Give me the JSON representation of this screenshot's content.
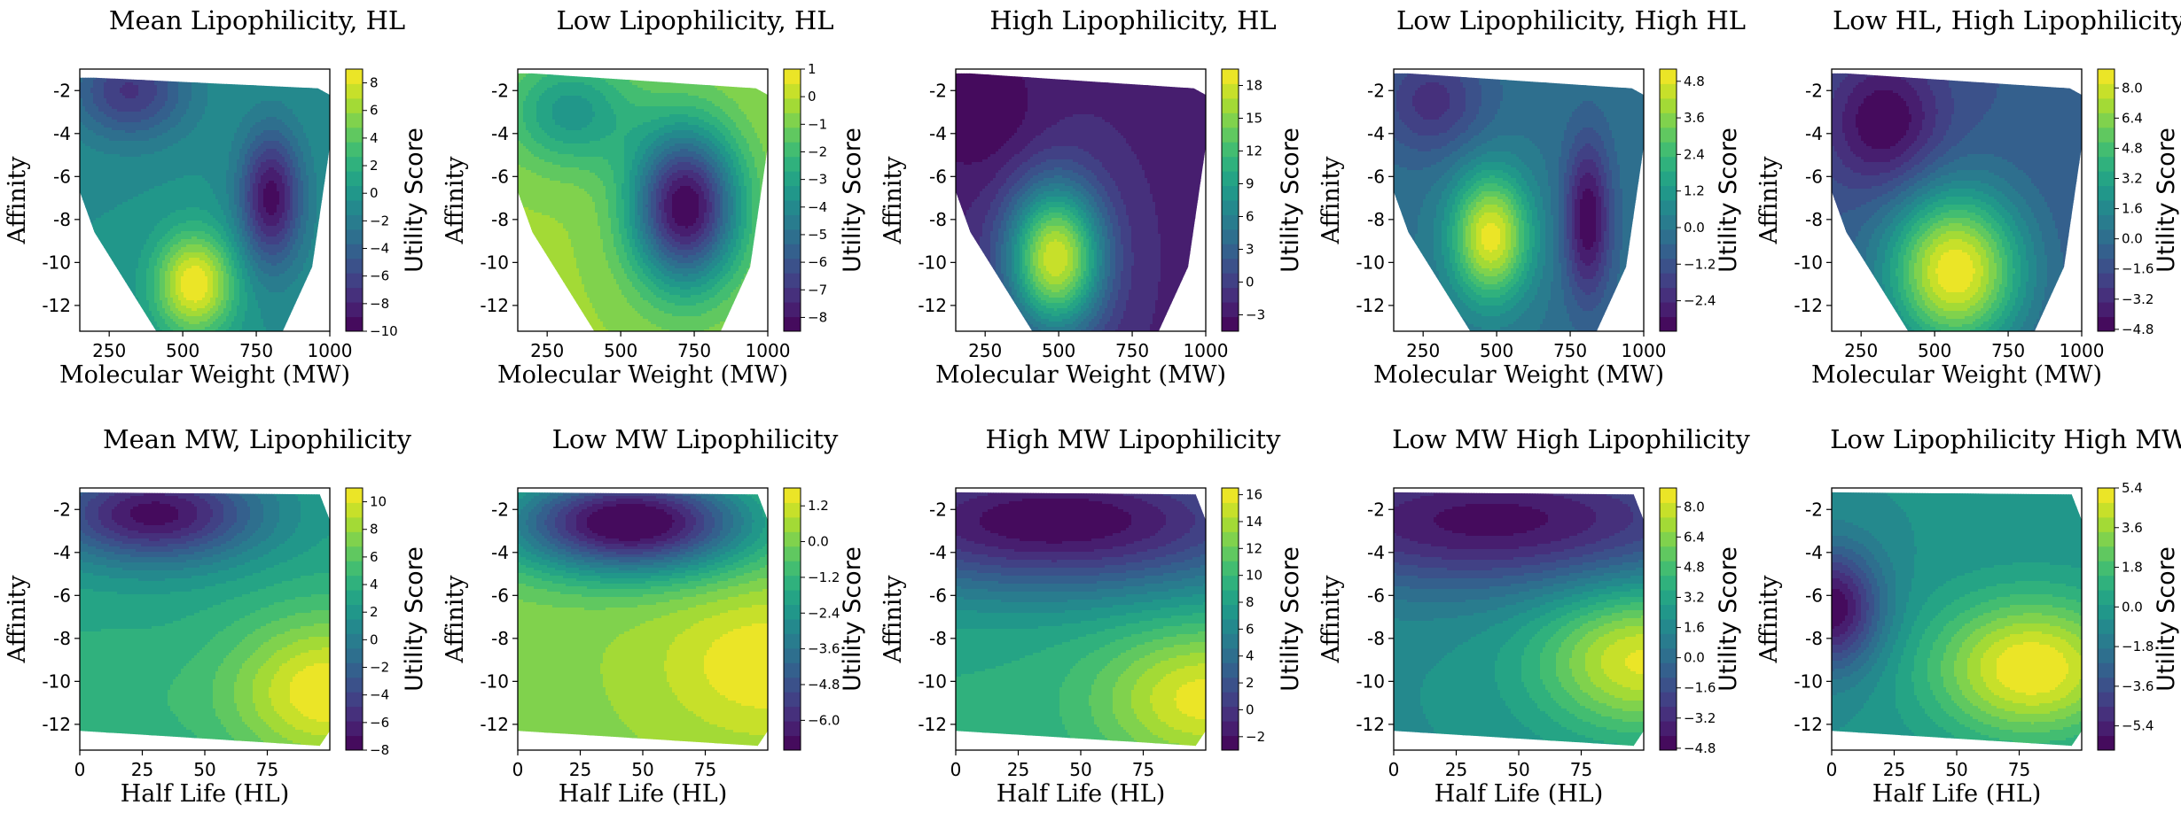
{
  "colors": {
    "viridis": [
      "#440154",
      "#482878",
      "#3e4989",
      "#31688e",
      "#26828e",
      "#1f9e89",
      "#35b779",
      "#6ece58",
      "#b5de2b",
      "#fde725"
    ]
  },
  "chart_data": [
    {
      "type": "heatmap",
      "title": "Mean Lipophilicity, HL",
      "xlabel": "Molecular Weight (MW)",
      "ylabel": "Affinity",
      "colorbar_label": "Utility Score",
      "xlim": [
        150,
        1000
      ],
      "ylim": [
        -13.2,
        -1.0
      ],
      "xticks": [
        "250",
        "500",
        "750",
        "1000"
      ],
      "yticks": [
        "-2",
        "-4",
        "-6",
        "-8",
        "-10",
        "-12"
      ],
      "colorbar_range": [
        -10,
        9
      ],
      "colorbar_ticks": [
        "8",
        "6",
        "4",
        "2",
        "0",
        "−2",
        "−4",
        "−6",
        "−8",
        "−10"
      ],
      "background_level": -0.5,
      "hotspots": [
        {
          "x": 540,
          "y": -11.0,
          "sx": 95,
          "sy": 1.7,
          "amp": 9.5
        },
        {
          "x": 800,
          "y": -7.0,
          "sx": 75,
          "sy": 2.2,
          "amp": -9.0
        },
        {
          "x": 320,
          "y": -2.0,
          "sx": 140,
          "sy": 1.6,
          "amp": -6.5
        }
      ],
      "domain_polygon": [
        [
          200,
          -1.4
        ],
        [
          960,
          -1.9
        ],
        [
          1000,
          -2.2
        ],
        [
          1000,
          -4.6
        ],
        [
          940,
          -10.2
        ],
        [
          840,
          -13.2
        ],
        [
          410,
          -13.2
        ],
        [
          200,
          -8.6
        ],
        [
          150,
          -6.7
        ],
        [
          150,
          -1.4
        ]
      ]
    },
    {
      "type": "heatmap",
      "title": "Low Lipophilicity, HL",
      "xlabel": "Molecular Weight (MW)",
      "ylabel": "Affinity",
      "colorbar_label": "Utility Score",
      "xlim": [
        150,
        1000
      ],
      "ylim": [
        -13.2,
        -1.0
      ],
      "xticks": [
        "250",
        "500",
        "750",
        "1000"
      ],
      "yticks": [
        "-2",
        "-4",
        "-6",
        "-8",
        "-10",
        "-12"
      ],
      "colorbar_range": [
        -8.5,
        1
      ],
      "colorbar_ticks": [
        "1",
        "0",
        "−1",
        "−2",
        "−3",
        "−4",
        "−5",
        "−6",
        "−7",
        "−8"
      ],
      "background_level": -0.5,
      "hotspots": [
        {
          "x": 720,
          "y": -7.4,
          "sx": 130,
          "sy": 2.6,
          "amp": -8.0
        },
        {
          "x": 330,
          "y": -3.0,
          "sx": 150,
          "sy": 1.8,
          "amp": -3.0
        }
      ],
      "domain_polygon": [
        [
          200,
          -1.2
        ],
        [
          960,
          -1.9
        ],
        [
          1000,
          -2.2
        ],
        [
          1000,
          -4.6
        ],
        [
          940,
          -10.2
        ],
        [
          840,
          -13.2
        ],
        [
          410,
          -13.2
        ],
        [
          200,
          -8.6
        ],
        [
          150,
          -6.7
        ],
        [
          150,
          -1.2
        ]
      ]
    },
    {
      "type": "heatmap",
      "title": "High Lipophilicity, HL",
      "xlabel": "Molecular Weight (MW)",
      "ylabel": "Affinity",
      "colorbar_label": "Utility Score",
      "xlim": [
        150,
        1000
      ],
      "ylim": [
        -13.2,
        -1.0
      ],
      "xticks": [
        "250",
        "500",
        "750",
        "1000"
      ],
      "yticks": [
        "-2",
        "-4",
        "-6",
        "-8",
        "-10",
        "-12"
      ],
      "colorbar_range": [
        -4.5,
        19.5
      ],
      "colorbar_ticks": [
        "18",
        "15",
        "12",
        "9",
        "6",
        "3",
        "0",
        "−3"
      ],
      "background_level": -2.0,
      "hotspots": [
        {
          "x": 490,
          "y": -9.8,
          "sx": 115,
          "sy": 2.4,
          "amp": 20.0
        },
        {
          "x": 240,
          "y": -3.0,
          "sx": 140,
          "sy": 2.2,
          "amp": -2.5
        }
      ],
      "domain_polygon": [
        [
          200,
          -1.2
        ],
        [
          960,
          -1.9
        ],
        [
          1000,
          -2.2
        ],
        [
          1000,
          -4.6
        ],
        [
          940,
          -10.2
        ],
        [
          840,
          -13.2
        ],
        [
          410,
          -13.2
        ],
        [
          200,
          -8.6
        ],
        [
          150,
          -6.7
        ],
        [
          150,
          -1.2
        ]
      ]
    },
    {
      "type": "heatmap",
      "title": "Low Lipophilicity, High HL",
      "xlabel": "Molecular Weight (MW)",
      "ylabel": "Affinity",
      "colorbar_label": "Utility Score",
      "xlim": [
        150,
        1000
      ],
      "ylim": [
        -13.2,
        -1.0
      ],
      "xticks": [
        "250",
        "500",
        "750",
        "1000"
      ],
      "yticks": [
        "-2",
        "-4",
        "-6",
        "-8",
        "-10",
        "-12"
      ],
      "colorbar_range": [
        -3.4,
        5.2
      ],
      "colorbar_ticks": [
        "4.8",
        "3.6",
        "2.4",
        "1.2",
        "0.0",
        "−1.2",
        "−2.4"
      ],
      "background_level": -0.2,
      "hotspots": [
        {
          "x": 480,
          "y": -8.8,
          "sx": 95,
          "sy": 2.1,
          "amp": 5.2
        },
        {
          "x": 810,
          "y": -8.0,
          "sx": 55,
          "sy": 2.6,
          "amp": -3.2
        },
        {
          "x": 280,
          "y": -2.5,
          "sx": 130,
          "sy": 1.8,
          "amp": -2.0
        }
      ],
      "domain_polygon": [
        [
          200,
          -1.2
        ],
        [
          960,
          -1.9
        ],
        [
          1000,
          -2.2
        ],
        [
          1000,
          -4.6
        ],
        [
          940,
          -10.2
        ],
        [
          840,
          -13.2
        ],
        [
          410,
          -13.2
        ],
        [
          200,
          -8.6
        ],
        [
          150,
          -6.7
        ],
        [
          150,
          -1.2
        ]
      ]
    },
    {
      "type": "heatmap",
      "title": "Low HL, High Lipophilicity",
      "xlabel": "Molecular Weight (MW)",
      "ylabel": "Affinity",
      "colorbar_label": "Utility Score",
      "xlim": [
        150,
        1000
      ],
      "ylim": [
        -13.2,
        -1.0
      ],
      "xticks": [
        "250",
        "500",
        "750",
        "1000"
      ],
      "yticks": [
        "-2",
        "-4",
        "-6",
        "-8",
        "-10",
        "-12"
      ],
      "colorbar_range": [
        -4.9,
        9
      ],
      "colorbar_ticks": [
        "8.0",
        "6.4",
        "4.8",
        "3.2",
        "1.6",
        "0.0",
        "−1.6",
        "−3.2",
        "−4.8"
      ],
      "background_level": -1.0,
      "hotspots": [
        {
          "x": 570,
          "y": -10.4,
          "sx": 160,
          "sy": 2.6,
          "amp": 10.0
        },
        {
          "x": 330,
          "y": -3.5,
          "sx": 140,
          "sy": 2.2,
          "amp": -4.0
        }
      ],
      "domain_polygon": [
        [
          200,
          -1.2
        ],
        [
          960,
          -1.9
        ],
        [
          1000,
          -2.2
        ],
        [
          1000,
          -4.6
        ],
        [
          940,
          -10.2
        ],
        [
          840,
          -13.2
        ],
        [
          410,
          -13.2
        ],
        [
          200,
          -8.6
        ],
        [
          150,
          -6.7
        ],
        [
          150,
          -1.2
        ]
      ]
    },
    {
      "type": "heatmap",
      "title": "Mean MW, Lipophilicity",
      "xlabel": "Half Life (HL)",
      "ylabel": "Affinity",
      "colorbar_label": "Utility Score",
      "xlim": [
        0,
        100
      ],
      "ylim": [
        -13.2,
        -1.0
      ],
      "xticks": [
        "0",
        "25",
        "50",
        "75"
      ],
      "yticks": [
        "-2",
        "-4",
        "-6",
        "-8",
        "-10",
        "-12"
      ],
      "colorbar_range": [
        -8,
        11
      ],
      "colorbar_ticks": [
        "10",
        "8",
        "6",
        "4",
        "2",
        "0",
        "−2",
        "−4",
        "−6",
        "−8"
      ],
      "background_level": 3.0,
      "hotspots": [
        {
          "x": 100,
          "y": -10.5,
          "sx": 30,
          "sy": 2.6,
          "amp": 8.0
        },
        {
          "x": 30,
          "y": -2.2,
          "sx": 30,
          "sy": 1.6,
          "amp": -10.5
        },
        {
          "x": 5,
          "y": -11.0,
          "sx": 30,
          "sy": 2.5,
          "amp": 1.5
        }
      ],
      "domain_polygon": [
        [
          0,
          -1.2
        ],
        [
          96,
          -1.3
        ],
        [
          100,
          -2.5
        ],
        [
          100,
          -12.3
        ],
        [
          96,
          -13.0
        ],
        [
          0,
          -12.3
        ]
      ]
    },
    {
      "type": "heatmap",
      "title": "Low MW Lipophilicity",
      "xlabel": "Half Life (HL)",
      "ylabel": "Affinity",
      "colorbar_label": "Utility Score",
      "xlim": [
        0,
        100
      ],
      "ylim": [
        -13.2,
        -1.0
      ],
      "xticks": [
        "0",
        "25",
        "50",
        "75"
      ],
      "yticks": [
        "-2",
        "-4",
        "-6",
        "-8",
        "-10",
        "-12"
      ],
      "colorbar_range": [
        -7,
        1.8
      ],
      "colorbar_ticks": [
        "1.2",
        "0.0",
        "−1.2",
        "−2.4",
        "−3.6",
        "−4.8",
        "−6.0"
      ],
      "background_level": 0.2,
      "hotspots": [
        {
          "x": 45,
          "y": -2.6,
          "sx": 35,
          "sy": 1.7,
          "amp": -7.6
        },
        {
          "x": 100,
          "y": -9.2,
          "sx": 30,
          "sy": 2.4,
          "amp": 1.6
        }
      ],
      "domain_polygon": [
        [
          0,
          -1.2
        ],
        [
          96,
          -1.3
        ],
        [
          100,
          -2.5
        ],
        [
          100,
          -12.3
        ],
        [
          96,
          -13.0
        ],
        [
          0,
          -12.3
        ]
      ]
    },
    {
      "type": "heatmap",
      "title": "High MW Lipophilicity",
      "xlabel": "Half Life (HL)",
      "ylabel": "Affinity",
      "colorbar_label": "Utility Score",
      "xlim": [
        0,
        100
      ],
      "ylim": [
        -13.2,
        -1.0
      ],
      "xticks": [
        "0",
        "25",
        "50",
        "75"
      ],
      "yticks": [
        "-2",
        "-4",
        "-6",
        "-8",
        "-10",
        "-12"
      ],
      "colorbar_range": [
        -3,
        16.5
      ],
      "colorbar_ticks": [
        "16",
        "14",
        "12",
        "10",
        "8",
        "6",
        "4",
        "2",
        "0",
        "−2"
      ],
      "background_level": 9.0,
      "hotspots": [
        {
          "x": 40,
          "y": -2.5,
          "sx": 70,
          "sy": 2.4,
          "amp": -12.0
        },
        {
          "x": 100,
          "y": -10.8,
          "sx": 30,
          "sy": 2.3,
          "amp": 7.0
        }
      ],
      "domain_polygon": [
        [
          0,
          -1.2
        ],
        [
          96,
          -1.3
        ],
        [
          100,
          -2.5
        ],
        [
          100,
          -12.3
        ],
        [
          96,
          -13.0
        ],
        [
          0,
          -12.3
        ]
      ]
    },
    {
      "type": "heatmap",
      "title": "Low MW High Lipophilicity",
      "xlabel": "Half Life (HL)",
      "ylabel": "Affinity",
      "colorbar_label": "Utility Score",
      "xlim": [
        0,
        100
      ],
      "ylim": [
        -13.2,
        -1.0
      ],
      "xticks": [
        "0",
        "25",
        "50",
        "75"
      ],
      "yticks": [
        "-2",
        "-4",
        "-6",
        "-8",
        "-10",
        "-12"
      ],
      "colorbar_range": [
        -4.9,
        9
      ],
      "colorbar_ticks": [
        "8.0",
        "6.4",
        "4.8",
        "3.2",
        "1.6",
        "0.0",
        "−1.6",
        "−3.2",
        "−4.8"
      ],
      "background_level": 2.0,
      "hotspots": [
        {
          "x": 40,
          "y": -2.5,
          "sx": 70,
          "sy": 2.3,
          "amp": -6.5
        },
        {
          "x": 100,
          "y": -9.0,
          "sx": 30,
          "sy": 2.4,
          "amp": 6.5
        }
      ],
      "domain_polygon": [
        [
          0,
          -1.2
        ],
        [
          96,
          -1.3
        ],
        [
          100,
          -2.5
        ],
        [
          100,
          -12.3
        ],
        [
          96,
          -13.0
        ],
        [
          0,
          -12.3
        ]
      ]
    },
    {
      "type": "heatmap",
      "title": "Low Lipophilicity High MW",
      "xlabel": "Half Life (HL)",
      "ylabel": "Affinity",
      "colorbar_label": "Utility Score",
      "xlim": [
        0,
        100
      ],
      "ylim": [
        -13.2,
        -1.0
      ],
      "xticks": [
        "0",
        "25",
        "50",
        "75"
      ],
      "yticks": [
        "-2",
        "-4",
        "-6",
        "-8",
        "-10",
        "-12"
      ],
      "colorbar_range": [
        -6.5,
        5.4
      ],
      "colorbar_ticks": [
        "5.4",
        "3.6",
        "1.8",
        "0.0",
        "−1.8",
        "−3.6",
        "−5.4"
      ],
      "background_level": -0.5,
      "hotspots": [
        {
          "x": 80,
          "y": -9.4,
          "sx": 28,
          "sy": 2.3,
          "amp": 6.0
        },
        {
          "x": 0,
          "y": -6.6,
          "sx": 14,
          "sy": 2.0,
          "amp": -6.0
        }
      ],
      "domain_polygon": [
        [
          0,
          -1.2
        ],
        [
          96,
          -1.3
        ],
        [
          100,
          -2.5
        ],
        [
          100,
          -12.3
        ],
        [
          96,
          -13.0
        ],
        [
          0,
          -12.3
        ]
      ]
    }
  ]
}
